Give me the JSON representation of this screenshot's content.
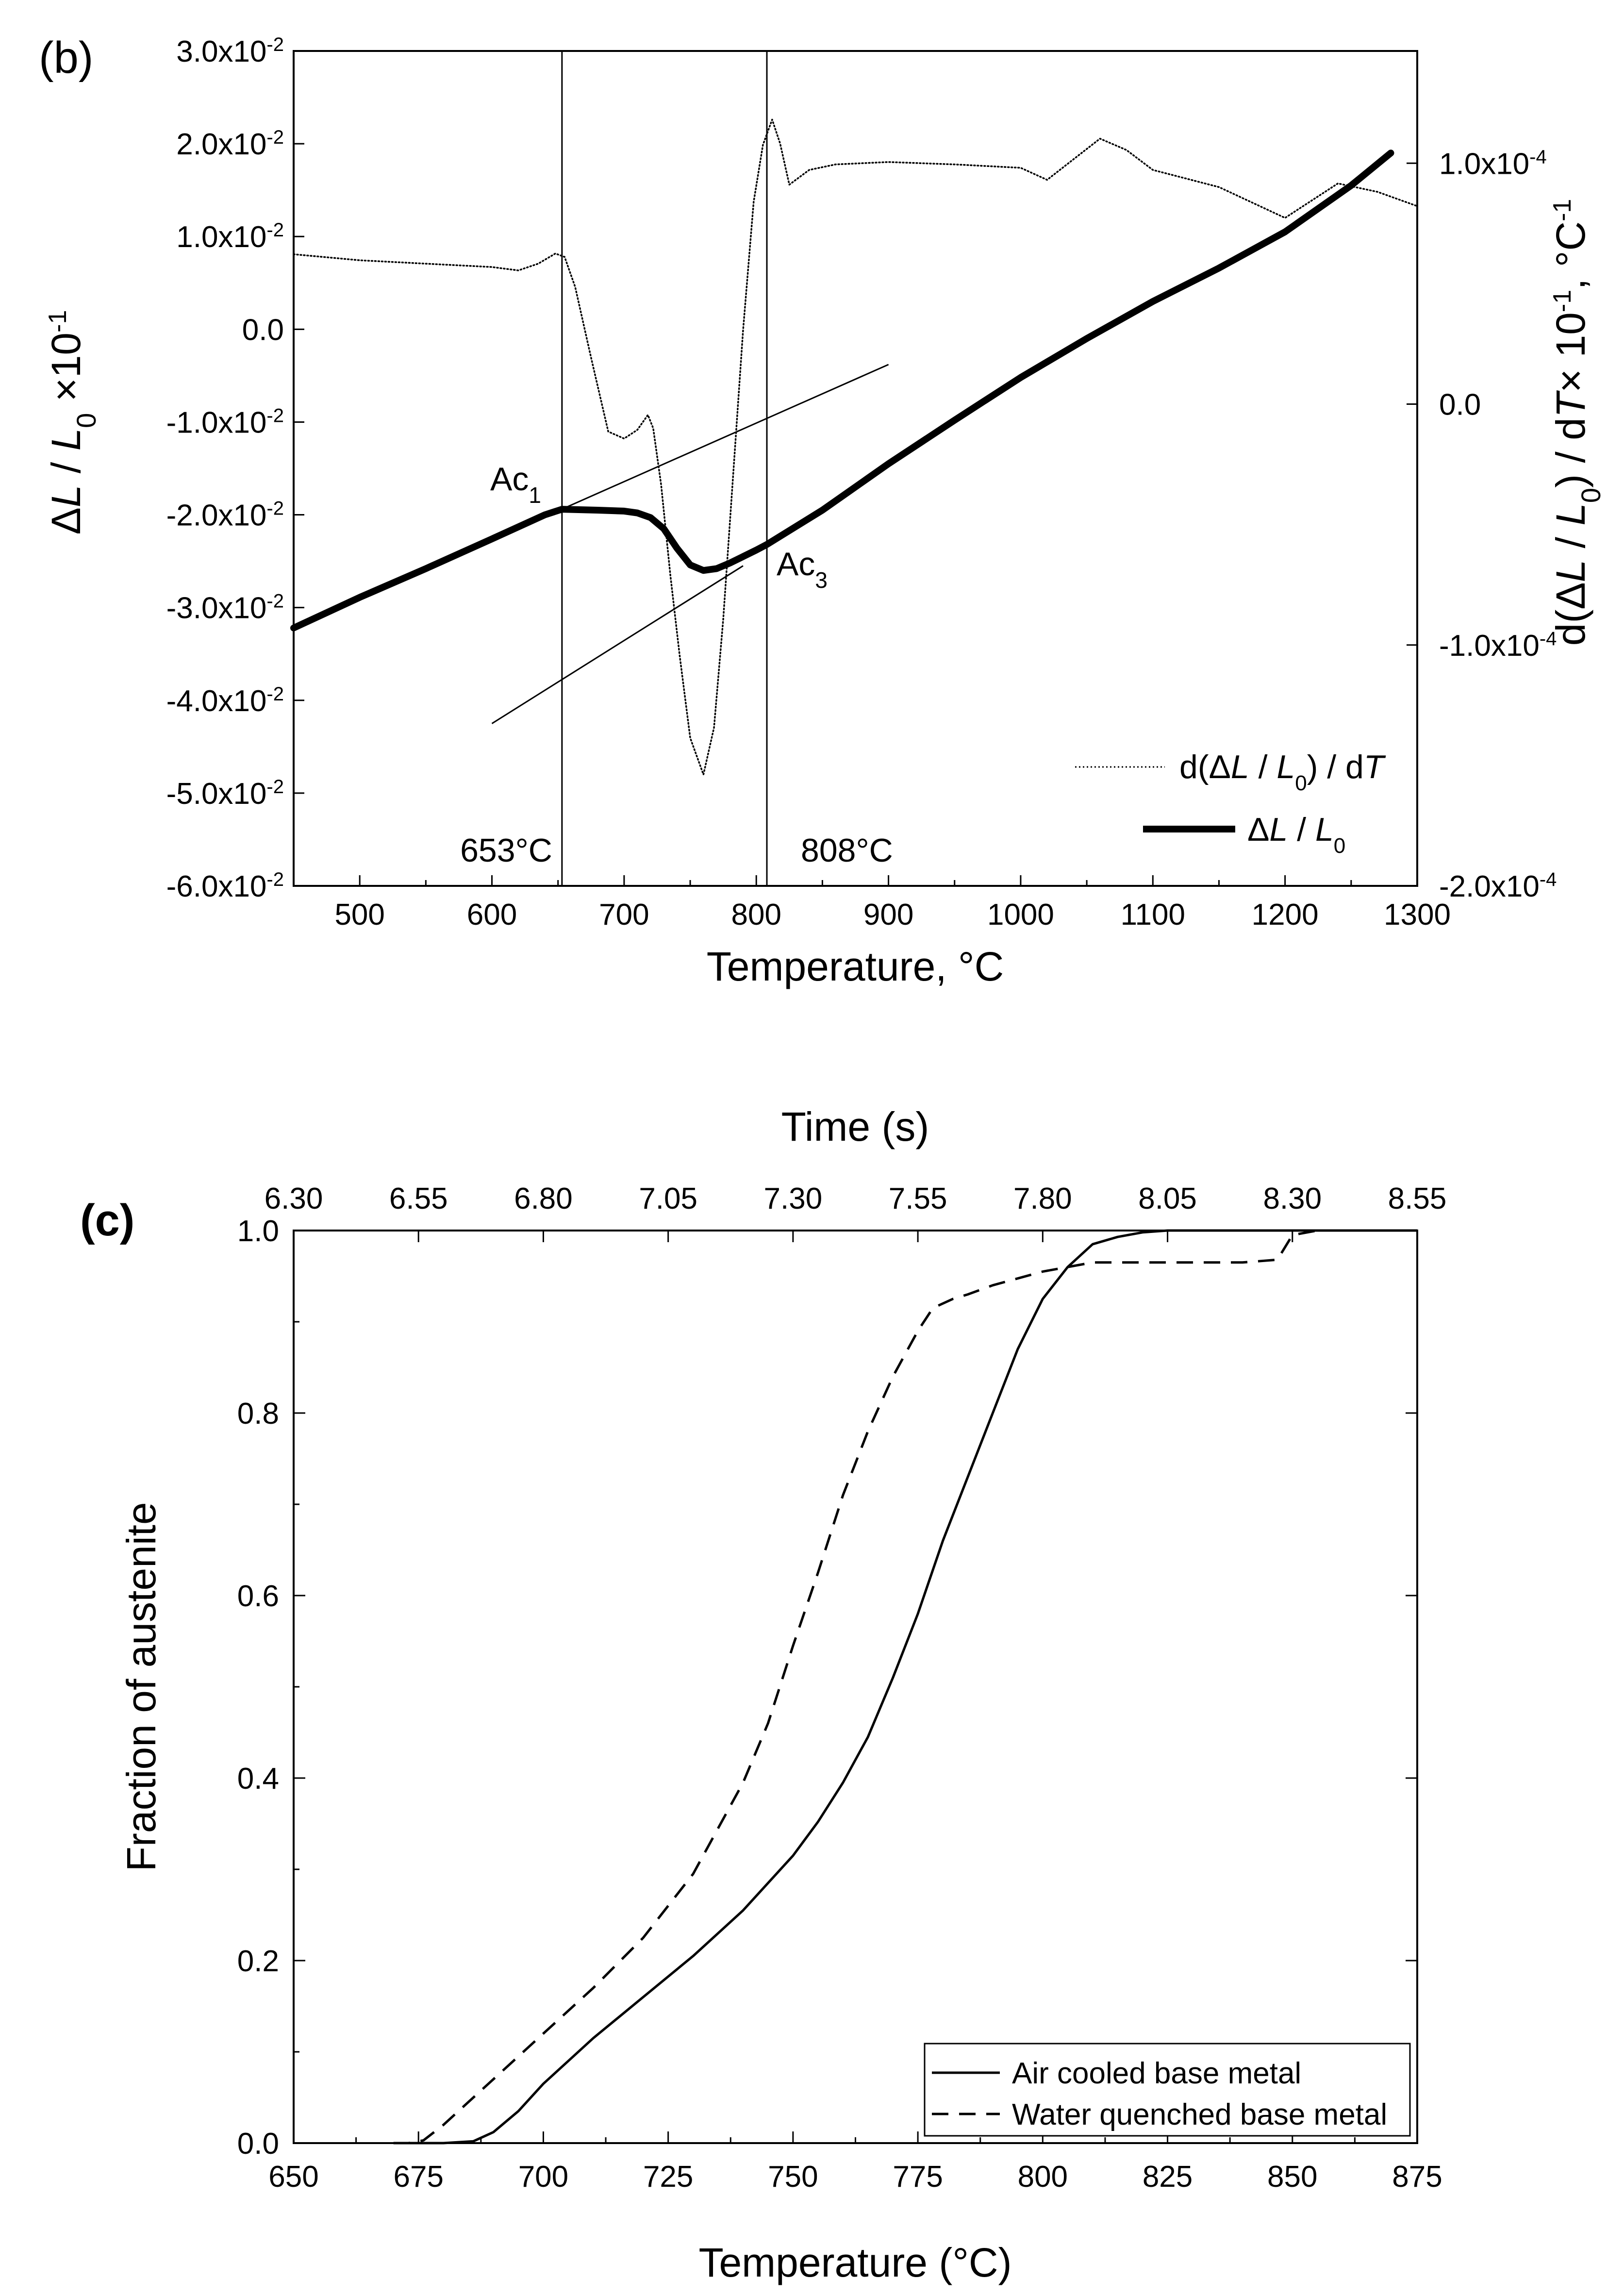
{
  "figure": {
    "panel_b_label": "(b)",
    "panel_c_label": "(c)"
  },
  "chart_data": [
    {
      "id": "b",
      "type": "line",
      "xlabel": "Temperature, °C",
      "ylabel_left": "ΔL / L0 ×10-1",
      "ylabel_right": "d(ΔL / L0) / dT × 10-1, °C-1",
      "xlim": [
        450,
        1300
      ],
      "xticks": [
        500,
        600,
        700,
        800,
        900,
        1000,
        1100,
        1200,
        1300
      ],
      "ylim_left": [
        -0.06,
        0.03
      ],
      "yticks_left": [
        {
          "v": 0.03,
          "label": "3.0x10-2"
        },
        {
          "v": 0.02,
          "label": "2.0x10-2"
        },
        {
          "v": 0.01,
          "label": "1.0x10-2"
        },
        {
          "v": 0.0,
          "label": "0.0"
        },
        {
          "v": -0.01,
          "label": "-1.0x10-2"
        },
        {
          "v": -0.02,
          "label": "-2.0x10-2"
        },
        {
          "v": -0.03,
          "label": "-3.0x10-2"
        },
        {
          "v": -0.04,
          "label": "-4.0x10-2"
        },
        {
          "v": -0.05,
          "label": "-5.0x10-2"
        },
        {
          "v": -0.06,
          "label": "-6.0x10-2"
        }
      ],
      "ylim_right": [
        -0.0002,
        0.0001466
      ],
      "yticks_right": [
        {
          "v": 0.0001,
          "label": "1.0x10-4"
        },
        {
          "v": 0.0,
          "label": "0.0"
        },
        {
          "v": -0.0001,
          "label": "-1.0x10-4"
        },
        {
          "v": -0.0002,
          "label": "-2.0x10-4"
        }
      ],
      "vlines": [
        {
          "x": 653,
          "label": "653°C"
        },
        {
          "x": 808,
          "label": "808°C"
        }
      ],
      "annotations": [
        {
          "text": "Ac1",
          "x": 653,
          "y": -0.019
        },
        {
          "text": "Ac3",
          "x": 808,
          "y": -0.026
        }
      ],
      "tangents": [
        {
          "x": [
            450,
            900
          ],
          "y": [
            -0.0322,
            -0.0038
          ]
        },
        {
          "x": [
            600,
            790
          ],
          "y": [
            -0.0425,
            -0.0255
          ]
        }
      ],
      "series": [
        {
          "name": "ΔL / L0",
          "axis": "left",
          "style": "thick",
          "x": [
            450,
            500,
            550,
            600,
            640,
            653,
            680,
            700,
            710,
            720,
            730,
            740,
            750,
            760,
            770,
            780,
            790,
            800,
            808,
            850,
            900,
            950,
            1000,
            1050,
            1100,
            1150,
            1200,
            1250,
            1280
          ],
          "y": [
            -0.0322,
            -0.0289,
            -0.0258,
            -0.0226,
            -0.02,
            -0.0194,
            -0.0195,
            -0.0196,
            -0.0198,
            -0.0203,
            -0.0215,
            -0.0236,
            -0.0254,
            -0.026,
            -0.0258,
            -0.0252,
            -0.0245,
            -0.0238,
            -0.0232,
            -0.0195,
            -0.0145,
            -0.0098,
            -0.0052,
            -0.001,
            0.003,
            0.0066,
            0.0105,
            0.0155,
            0.019
          ]
        },
        {
          "name": "d(ΔL / L0) / dT",
          "axis": "right",
          "style": "dotted",
          "x": [
            450,
            500,
            550,
            600,
            620,
            635,
            648,
            655,
            663,
            675,
            688,
            700,
            710,
            718,
            722,
            728,
            735,
            742,
            750,
            760,
            768,
            775,
            782,
            790,
            798,
            805,
            812,
            818,
            825,
            840,
            860,
            900,
            950,
            1000,
            1020,
            1060,
            1080,
            1100,
            1150,
            1200,
            1240,
            1270,
            1300
          ],
          "y": [
            6.22e-05,
            5.97e-05,
            5.83e-05,
            5.69e-05,
            5.55e-05,
            5.83e-05,
            6.25e-05,
            6.11e-05,
            4.86e-05,
            1.93e-05,
            -1.14e-05,
            -1.43e-05,
            -1.07e-05,
            -4.5e-06,
            -1e-05,
            -3.34e-05,
            -7.11e-05,
            -0.0001043,
            -0.0001386,
            -0.0001538,
            -0.0001343,
            -8.93e-05,
            -3.34e-05,
            3.07e-05,
            8.4e-05,
            0.0001076,
            0.0001181,
            0.0001082,
            9.11e-05,
            9.72e-05,
            9.95e-05,
            0.0001005,
            9.95e-05,
            9.81e-05,
            9.31e-05,
            0.0001102,
            0.0001055,
            9.72e-05,
            9.01e-05,
            7.73e-05,
            9.16e-05,
            8.81e-05,
            8.22e-05
          ]
        }
      ],
      "legend": {
        "placement": "bottom-right",
        "entries": [
          "d(ΔL / L0) / dT",
          "ΔL / L0"
        ]
      }
    },
    {
      "id": "c",
      "type": "line",
      "xlabel": "Temperature (°C)",
      "ylabel": "Fraction of austenite",
      "top_xlabel": "Time (s)",
      "xlim": [
        650,
        875
      ],
      "xticks": [
        650,
        675,
        700,
        725,
        750,
        775,
        800,
        825,
        850,
        875
      ],
      "top_xticks": [
        "6.30",
        "6.55",
        "6.80",
        "7.05",
        "7.30",
        "7.55",
        "7.80",
        "8.05",
        "8.30",
        "8.55"
      ],
      "ylim": [
        0,
        1.0
      ],
      "yticks": [
        0.0,
        0.2,
        0.4,
        0.6,
        0.8,
        1.0
      ],
      "series": [
        {
          "name": "Air cooled base metal",
          "style": "solid",
          "x": [
            670,
            680,
            686,
            690,
            695,
            700,
            705,
            710,
            720,
            730,
            740,
            750,
            755,
            760,
            765,
            770,
            775,
            780,
            785,
            790,
            795,
            800,
            805,
            810,
            815,
            820,
            825,
            830,
            850,
            875
          ],
          "y": [
            0,
            0,
            0.002,
            0.012,
            0.035,
            0.065,
            0.09,
            0.115,
            0.16,
            0.205,
            0.255,
            0.315,
            0.352,
            0.395,
            0.445,
            0.51,
            0.58,
            0.66,
            0.73,
            0.8,
            0.87,
            0.925,
            0.96,
            0.985,
            0.993,
            0.998,
            1.0,
            1.0,
            1.0,
            1.0
          ]
        },
        {
          "name": "Water quenched base metal",
          "style": "dashed",
          "x": [
            670,
            673,
            676,
            680,
            685,
            690,
            700,
            710,
            720,
            730,
            740,
            745,
            750,
            755,
            760,
            765,
            770,
            775,
            778,
            782,
            785,
            790,
            800,
            810,
            820,
            830,
            840,
            847,
            850,
            855
          ],
          "y": [
            0,
            0,
            0.003,
            0.02,
            0.045,
            0.07,
            0.12,
            0.17,
            0.225,
            0.295,
            0.395,
            0.46,
            0.545,
            0.625,
            0.71,
            0.78,
            0.84,
            0.89,
            0.915,
            0.925,
            0.93,
            0.94,
            0.955,
            0.965,
            0.965,
            0.965,
            0.965,
            0.968,
            0.995,
            1.0
          ]
        }
      ],
      "legend": {
        "placement": "bottom-right",
        "entries": [
          "Air cooled base metal",
          "Water quenched base metal"
        ]
      }
    }
  ]
}
